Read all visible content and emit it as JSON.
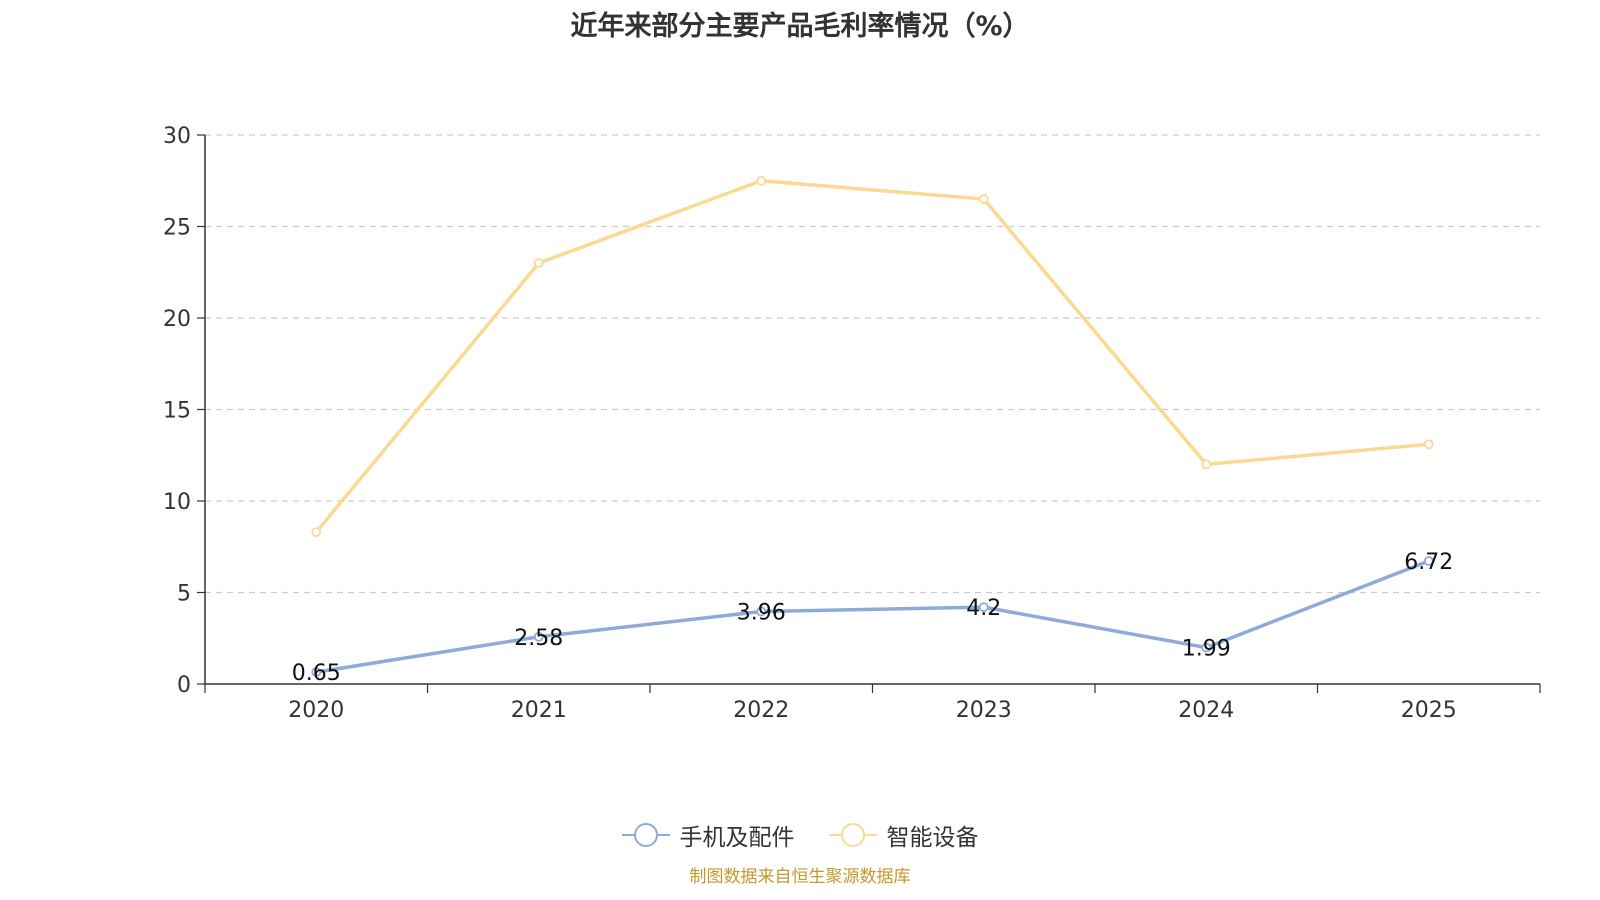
{
  "chart_data": {
    "type": "line",
    "title": "近年来部分主要产品毛利率情况（%）",
    "categories": [
      "2020",
      "2021",
      "2022",
      "2023",
      "2024",
      "2025"
    ],
    "ylim": [
      0,
      30
    ],
    "yticks": [
      0,
      5,
      10,
      15,
      20,
      25,
      30
    ],
    "grid": true,
    "legend_position": "bottom",
    "series": [
      {
        "name": "手机及配件",
        "color": "#8eaad8",
        "values": [
          0.65,
          2.58,
          3.96,
          4.2,
          1.99,
          6.72
        ],
        "labels": [
          "0.65",
          "2.58",
          "3.96",
          "4.2",
          "1.99",
          "6.72"
        ],
        "show_labels": true
      },
      {
        "name": "智能设备",
        "color": "#fad993",
        "values": [
          8.3,
          23.0,
          27.5,
          26.5,
          12.0,
          13.1
        ],
        "show_labels": false
      }
    ],
    "source": "制图数据来自恒生聚源数据库"
  }
}
